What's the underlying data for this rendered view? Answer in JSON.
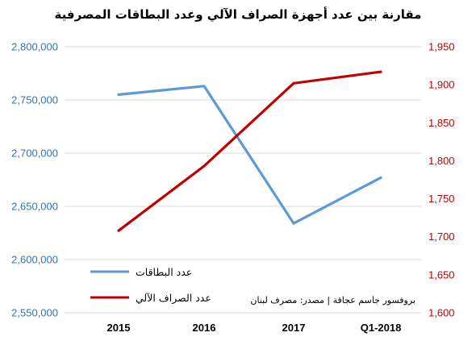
{
  "chart_data": {
    "type": "line",
    "title": "مقارنة بين عدد أجهزة الصراف الآلي وعدد البطاقات المصرفية",
    "categories": [
      "2015",
      "2016",
      "2017",
      "Q1-2018"
    ],
    "series": [
      {
        "name": "عدد البطاقات",
        "axis": "left",
        "color": "#5B9BD5",
        "values": [
          2755000,
          2763000,
          2634000,
          2677000
        ]
      },
      {
        "name": "عدد الصراف الآلي",
        "axis": "right",
        "color": "#C00000",
        "values": [
          1708,
          1793,
          1902,
          1917
        ]
      }
    ],
    "y_left": {
      "ylim": [
        2550000,
        2800000
      ],
      "ticks": [
        2800000,
        2750000,
        2700000,
        2650000,
        2600000,
        2550000
      ],
      "tick_labels": [
        "2,800,000",
        "2,750,000",
        "2,700,000",
        "2,650,000",
        "2,600,000",
        "2,550,000"
      ],
      "color": "#2E75B6"
    },
    "y_right": {
      "ylim": [
        1600,
        1950
      ],
      "ticks": [
        1950,
        1900,
        1850,
        1800,
        1750,
        1700,
        1650,
        1600
      ],
      "tick_labels": [
        "1,950",
        "1,900",
        "1,850",
        "1,800",
        "1,750",
        "1,700",
        "1,650",
        "1,600"
      ],
      "color": "#C00000"
    },
    "grid": true,
    "legend_position": "bottom-left",
    "source": "بروفسور جاسم عجاقة | مصدر: مصرف لبنان"
  }
}
